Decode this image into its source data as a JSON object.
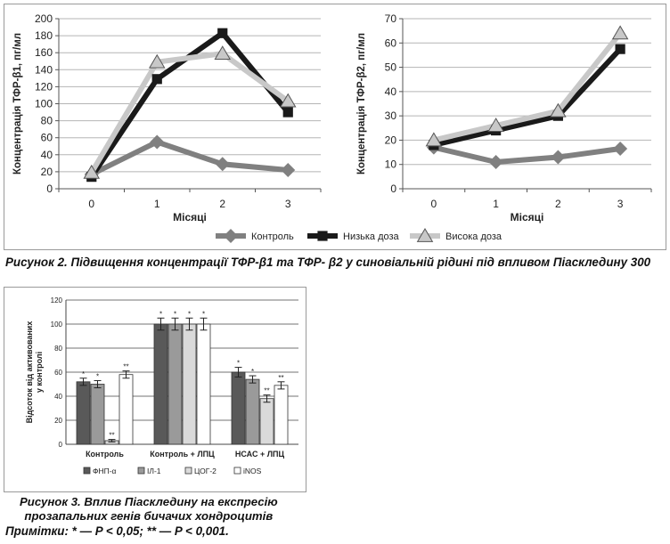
{
  "figure2": {
    "caption": "Рисунок 2. Підвищення концентрації ТФР-β1 та ТФР- β2 у синовіальній рідині під впливом Піаскледину 300",
    "legend": [
      {
        "label": "Контроль",
        "marker": "diamond",
        "color": "#808080"
      },
      {
        "label": "Низька доза",
        "marker": "square",
        "color": "#1a1a1a"
      },
      {
        "label": "Висока доза",
        "marker": "triangle",
        "color": "#c8c8c8"
      }
    ]
  },
  "figure3": {
    "caption_line1": "Рисунок 3. Вплив Піаскледину на експресію",
    "caption_line2": "прозапальних генів бичачих хондроцитів",
    "note": "Примітки: * — P < 0,05; ** — P < 0,001."
  },
  "chart_data": [
    {
      "type": "line",
      "ylabel": "Концентрація ТФР-β1, пг/мл",
      "xlabel": "Місяці",
      "x": [
        0,
        1,
        2,
        3
      ],
      "ylim": [
        0,
        200
      ],
      "yticks": [
        0,
        20,
        40,
        60,
        80,
        100,
        120,
        140,
        160,
        180,
        200
      ],
      "grid": "horizontal",
      "series": [
        {
          "name": "Контроль",
          "values": [
            17,
            55,
            29,
            22
          ],
          "color": "#808080",
          "marker": "diamond"
        },
        {
          "name": "Низька доза",
          "values": [
            14,
            129,
            183,
            90
          ],
          "color": "#1a1a1a",
          "marker": "square"
        },
        {
          "name": "Висока доза",
          "values": [
            19,
            149,
            159,
            103
          ],
          "color": "#c8c8c8",
          "marker": "triangle"
        }
      ]
    },
    {
      "type": "line",
      "ylabel": "Концентрація ТФР-β2, пг/мл",
      "xlabel": "Місяці",
      "x": [
        0,
        1,
        2,
        3
      ],
      "ylim": [
        0,
        70
      ],
      "yticks": [
        0,
        10,
        20,
        30,
        40,
        50,
        60,
        70
      ],
      "grid": "horizontal",
      "series": [
        {
          "name": "Контроль",
          "values": [
            17,
            11,
            13,
            16.5
          ],
          "color": "#808080",
          "marker": "diamond"
        },
        {
          "name": "Низька доза",
          "values": [
            18,
            24,
            30,
            57.5
          ],
          "color": "#1a1a1a",
          "marker": "square"
        },
        {
          "name": "Висока доза",
          "values": [
            20,
            26,
            32,
            64
          ],
          "color": "#c8c8c8",
          "marker": "triangle"
        }
      ]
    },
    {
      "type": "bar",
      "ylabel": "Відсоток від активованих у контролі",
      "categories": [
        "Контроль",
        "Контроль + ЛПЦ",
        "НСАС + ЛПЦ"
      ],
      "ylim": [
        0,
        120
      ],
      "yticks": [
        0,
        20,
        40,
        60,
        80,
        100,
        120
      ],
      "grid": "horizontal",
      "legend_position": "bottom",
      "series": [
        {
          "name": "ФНП-α",
          "values": [
            52,
            100,
            60
          ],
          "errors": [
            3,
            5,
            4
          ],
          "color": "#595959",
          "marks": [
            "*",
            "*",
            "*"
          ]
        },
        {
          "name": "ІЛ-1",
          "values": [
            50,
            100,
            54
          ],
          "errors": [
            3,
            5,
            3
          ],
          "color": "#9a9a9a",
          "marks": [
            "*",
            "*",
            "*"
          ]
        },
        {
          "name": "ЦОГ-2",
          "values": [
            3,
            100,
            38
          ],
          "errors": [
            1,
            5,
            3
          ],
          "color": "#dadada",
          "marks": [
            "**",
            "*",
            "**"
          ]
        },
        {
          "name": "iNOS",
          "values": [
            58,
            100,
            49
          ],
          "errors": [
            3,
            5,
            3
          ],
          "color": "#ffffff",
          "marks": [
            "**",
            "*",
            "**"
          ]
        }
      ]
    }
  ]
}
